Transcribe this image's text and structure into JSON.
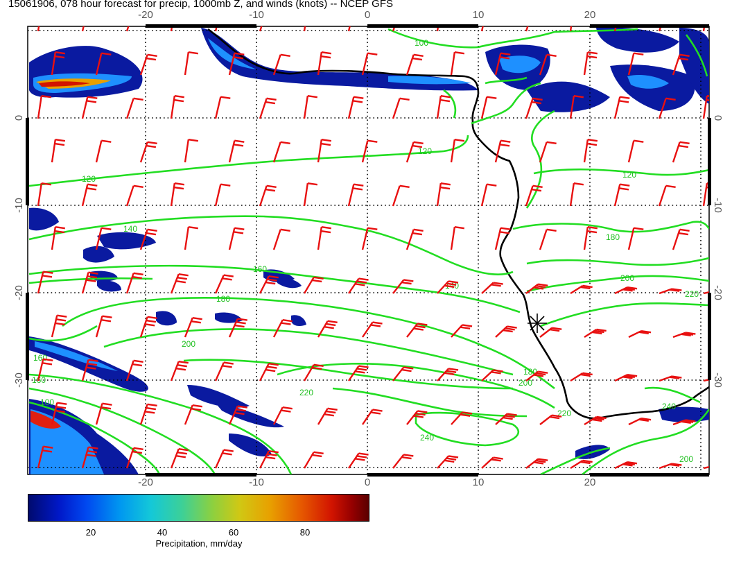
{
  "title": "15061906, 078 hour forecast for precip, 1000mb Z, and winds (knots) -- NCEP GFS",
  "map": {
    "lon_ticks": [
      "-20",
      "-10",
      "0",
      "10",
      "20"
    ],
    "lat_ticks": [
      "0",
      "-10",
      "-20",
      "-30"
    ],
    "contour_labels": [
      "100",
      "120",
      "120",
      "120",
      "140",
      "140",
      "160",
      "160",
      "180",
      "180",
      "180",
      "200",
      "200",
      "200",
      "220",
      "220",
      "220",
      "240",
      "240",
      "200",
      "160",
      "100"
    ],
    "colors": {
      "contour": "#22dd22",
      "barb": "#e81010",
      "coast": "#000000",
      "precip_low": "#0a1aa0",
      "precip_mid": "#1e90ff",
      "precip_high": "#e02010"
    },
    "marker_icon": "asterisk-station-icon"
  },
  "colorbar": {
    "ticks": [
      "20",
      "40",
      "60",
      "80"
    ],
    "label": "Precipitation, mm/day"
  }
}
